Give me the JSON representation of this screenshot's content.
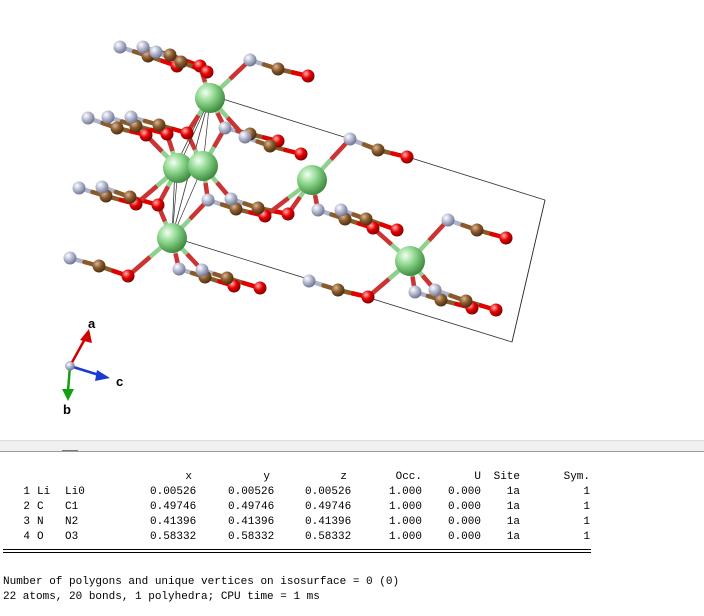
{
  "axes": {
    "a": "a",
    "b": "b",
    "c": "c"
  },
  "colors": {
    "Li": "#7fc97f",
    "C": "#8b5a2b",
    "N": "#b0b6cf",
    "O": "#e00000",
    "bond_Li": "#8fd08f"
  },
  "table": {
    "headers": {
      "x": "x",
      "y": "y",
      "z": "z",
      "occ": "Occ.",
      "u": "U",
      "site": "Site",
      "sym": "Sym."
    },
    "rows": [
      {
        "num": "1",
        "elem": "Li",
        "label": "Li0",
        "x": "0.00526",
        "y": "0.00526",
        "z": "0.00526",
        "occ": "1.000",
        "u": "0.000",
        "site": "1a",
        "sym": "1"
      },
      {
        "num": "2",
        "elem": "C",
        "label": "C1",
        "x": "0.49746",
        "y": "0.49746",
        "z": "0.49746",
        "occ": "1.000",
        "u": "0.000",
        "site": "1a",
        "sym": "1"
      },
      {
        "num": "3",
        "elem": "N",
        "label": "N2",
        "x": "0.41396",
        "y": "0.41396",
        "z": "0.41396",
        "occ": "1.000",
        "u": "0.000",
        "site": "1a",
        "sym": "1"
      },
      {
        "num": "4",
        "elem": "O",
        "label": "O3",
        "x": "0.58332",
        "y": "0.58332",
        "z": "0.58332",
        "occ": "1.000",
        "u": "0.000",
        "site": "1a",
        "sym": "1"
      }
    ]
  },
  "messages": {
    "isosurface": "Number of polygons and unique vertices on isosurface = 0 (0)",
    "summary": "22 atoms, 20 bonds, 1 polyhedra; CPU time = 1 ms"
  }
}
